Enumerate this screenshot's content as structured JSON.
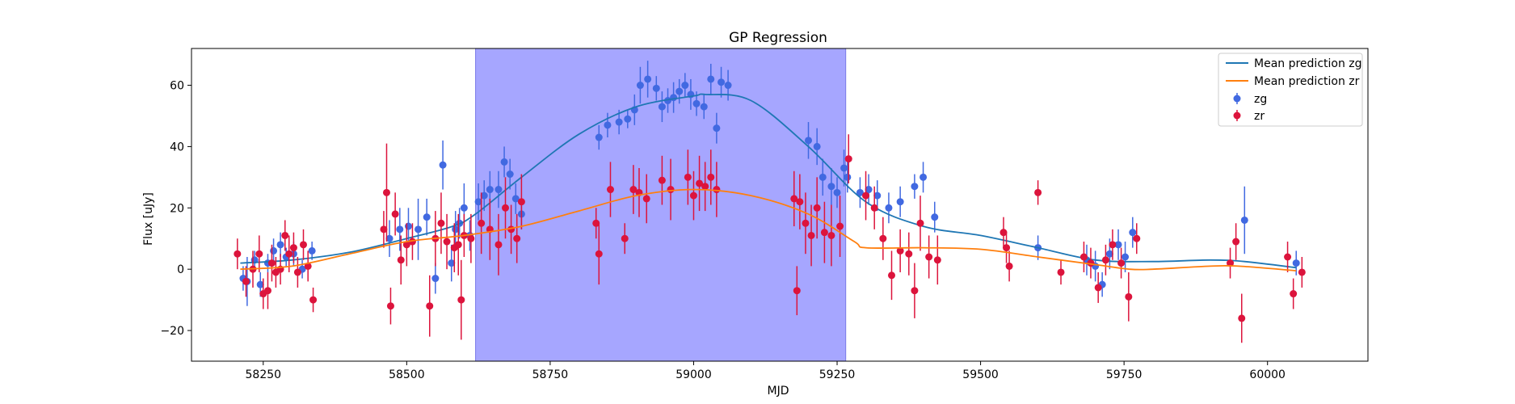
{
  "chart_data": {
    "type": "scatter",
    "title": "GP Regression",
    "xlabel": "MJD",
    "ylabel": "Flux [uJy]",
    "xlim": [
      58125,
      60175
    ],
    "ylim": [
      -30,
      72
    ],
    "xticks": [
      58250,
      58500,
      58750,
      59000,
      59250,
      59500,
      59750,
      60000
    ],
    "yticks": [
      -20,
      0,
      20,
      40,
      60
    ],
    "grid": false,
    "legend_position": "top-right",
    "shaded_region": {
      "x_start": 58620,
      "x_end": 59265,
      "color": "#a6a6ff"
    },
    "series": [
      {
        "name": "Mean prediction zg",
        "kind": "line",
        "color": "#1f77b4",
        "x": [
          58210,
          58300,
          58400,
          58500,
          58580,
          58620,
          58700,
          58800,
          58900,
          59000,
          59020,
          59100,
          59200,
          59300,
          59400,
          59500,
          59600,
          59700,
          59800,
          59900,
          59960,
          60050
        ],
        "y": [
          2,
          3,
          5.5,
          10,
          14,
          18,
          30,
          44,
          53,
          56.5,
          57,
          55,
          40,
          22,
          14,
          11,
          7,
          3,
          2.5,
          3,
          2.5,
          0.5
        ]
      },
      {
        "name": "Mean prediction zr",
        "kind": "line",
        "color": "#ff7f0e",
        "x": [
          58210,
          58300,
          58400,
          58500,
          58600,
          58700,
          58800,
          58900,
          59000,
          59100,
          59200,
          59280,
          59300,
          59400,
          59500,
          59600,
          59700,
          59760,
          59800,
          59900,
          59950,
          60050
        ],
        "y": [
          0,
          1,
          5,
          9,
          11,
          14,
          19,
          24,
          26,
          24,
          18,
          9,
          7,
          7,
          6.5,
          4,
          1.5,
          0,
          0,
          1,
          1,
          -0.5
        ]
      },
      {
        "name": "zg",
        "kind": "errorbar",
        "color": "#4169e1",
        "x": [
          58215,
          58222,
          58235,
          58245,
          58258,
          58268,
          58280,
          58290,
          58303,
          58318,
          58335,
          58470,
          58488,
          58503,
          58520,
          58535,
          58550,
          58563,
          58578,
          58585,
          58592,
          58600,
          58610,
          58625,
          58635,
          58645,
          58660,
          58670,
          58680,
          58690,
          58700,
          58835,
          58850,
          58870,
          58885,
          58897,
          58907,
          58920,
          58935,
          58945,
          58955,
          58965,
          58975,
          58985,
          58995,
          59005,
          59018,
          59030,
          59040,
          59048,
          59060,
          59200,
          59215,
          59225,
          59240,
          59250,
          59262,
          59268,
          59290,
          59305,
          59320,
          59340,
          59360,
          59385,
          59400,
          59420,
          59600,
          59685,
          59700,
          59712,
          59725,
          59740,
          59752,
          59765,
          59960,
          60050
        ],
        "y": [
          -3,
          -4,
          3,
          -5,
          2,
          6,
          8,
          4,
          5,
          0,
          6,
          10,
          13,
          14,
          13,
          17,
          -3,
          34,
          2,
          13,
          15,
          20,
          11,
          22,
          24,
          26,
          26,
          35,
          31,
          23,
          18,
          43,
          47,
          48,
          49,
          52,
          60,
          62,
          59,
          53,
          55,
          56,
          58,
          60,
          57,
          54,
          53,
          62,
          46,
          61,
          60,
          42,
          40,
          30,
          27,
          25,
          33,
          30,
          25,
          26,
          24,
          20,
          22,
          27,
          30,
          17,
          7,
          3,
          1,
          -5,
          5,
          8,
          4,
          12,
          16,
          2
        ],
        "err": [
          4,
          8,
          3,
          4,
          3,
          4,
          4,
          3,
          4,
          3,
          3,
          6,
          7,
          6,
          10,
          6,
          5,
          8,
          6,
          6,
          5,
          8,
          5,
          6,
          5,
          6,
          6,
          5,
          5,
          5,
          5,
          4,
          4,
          4,
          3,
          5,
          6,
          6,
          4,
          5,
          4,
          5,
          4,
          4,
          5,
          4,
          4,
          5,
          5,
          5,
          5,
          6,
          6,
          6,
          6,
          5,
          6,
          5,
          5,
          5,
          5,
          5,
          5,
          4,
          5,
          5,
          4,
          5,
          5,
          4,
          5,
          5,
          5,
          5,
          11,
          4
        ]
      },
      {
        "name": "zr",
        "kind": "errorbar",
        "color": "#dc143c",
        "x": [
          58205,
          58220,
          58232,
          58243,
          58250,
          58258,
          58265,
          58272,
          58280,
          58288,
          58295,
          58303,
          58310,
          58320,
          58328,
          58337,
          58460,
          58465,
          58472,
          58480,
          58490,
          58500,
          58510,
          58540,
          58550,
          58560,
          58570,
          58583,
          58590,
          58595,
          58600,
          58612,
          58630,
          58645,
          58660,
          58672,
          58682,
          58692,
          58700,
          58830,
          58835,
          58855,
          58880,
          58895,
          58905,
          58918,
          58945,
          58960,
          58990,
          59000,
          59010,
          59020,
          59030,
          59040,
          59175,
          59180,
          59185,
          59195,
          59205,
          59215,
          59228,
          59240,
          59255,
          59270,
          59300,
          59315,
          59330,
          59345,
          59360,
          59375,
          59385,
          59395,
          59410,
          59425,
          59540,
          59545,
          59550,
          59600,
          59640,
          59680,
          59692,
          59705,
          59718,
          59730,
          59745,
          59758,
          59772,
          59935,
          59945,
          59955,
          60035,
          60045,
          60060
        ],
        "y": [
          5,
          -4,
          0,
          5,
          -8,
          -7,
          2,
          -1,
          0,
          11,
          5,
          7,
          -1,
          8,
          1,
          -10,
          13,
          25,
          -12,
          18,
          3,
          8,
          9,
          -12,
          10,
          15,
          9,
          7,
          8,
          -10,
          11,
          10,
          15,
          13,
          8,
          20,
          13,
          10,
          22,
          15,
          5,
          26,
          10,
          26,
          25,
          23,
          29,
          26,
          30,
          24,
          28,
          27,
          30,
          26,
          23,
          -7,
          22,
          15,
          11,
          20,
          12,
          11,
          14,
          36,
          24,
          20,
          10,
          -2,
          6,
          5,
          -7,
          15,
          4,
          3,
          12,
          7,
          1,
          25,
          -1,
          4,
          2,
          -6,
          3,
          8,
          2,
          -9,
          10,
          2,
          9,
          -16,
          4,
          -8,
          -1
        ],
        "err": [
          5,
          5,
          6,
          6,
          5,
          6,
          6,
          5,
          5,
          5,
          6,
          5,
          5,
          5,
          5,
          4,
          6,
          16,
          6,
          7,
          8,
          7,
          6,
          10,
          9,
          10,
          9,
          8,
          10,
          13,
          7,
          8,
          10,
          10,
          10,
          10,
          8,
          8,
          9,
          5,
          10,
          9,
          5,
          8,
          8,
          8,
          8,
          10,
          9,
          8,
          9,
          8,
          9,
          9,
          9,
          8,
          9,
          10,
          10,
          10,
          10,
          10,
          10,
          8,
          8,
          7,
          7,
          8,
          7,
          7,
          9,
          9,
          7,
          8,
          5,
          5,
          5,
          4,
          4,
          5,
          5,
          5,
          5,
          5,
          5,
          8,
          5,
          5,
          6,
          8,
          5,
          5,
          5
        ]
      }
    ]
  }
}
